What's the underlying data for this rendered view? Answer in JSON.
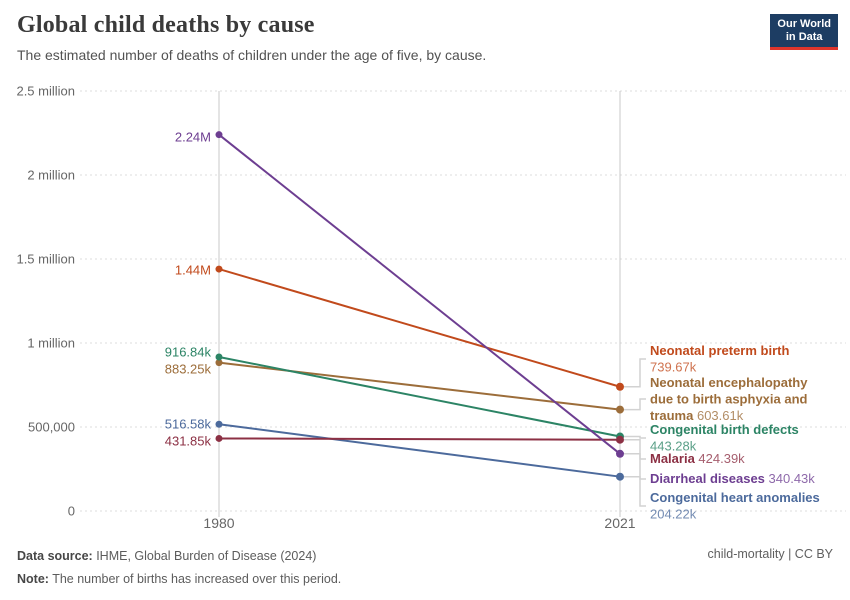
{
  "header": {
    "title": "Global child deaths by cause",
    "subtitle": "The estimated number of deaths of children under the age of five, by cause."
  },
  "logo": {
    "line1": "Our World",
    "line2": "in Data",
    "bg_color": "#1d3d63",
    "bar_color": "#de352c"
  },
  "footer": {
    "source_label": "Data source:",
    "source_text": " IHME, Global Burden of Disease (2024)",
    "note_label": "Note:",
    "note_text": " The number of births has increased over this period.",
    "right": "child-mortality | CC BY"
  },
  "chart_data": {
    "type": "line",
    "title": "Global child deaths by cause",
    "xlabel": "",
    "ylabel": "",
    "x": [
      1980,
      2021
    ],
    "x_tick_labels": [
      "1980",
      "2021"
    ],
    "ylim": [
      0,
      2500000
    ],
    "y_ticks": [
      0,
      500000,
      1000000,
      1500000,
      2000000,
      2500000
    ],
    "y_tick_labels": [
      "0",
      "500,000",
      "1 million",
      "1.5 million",
      "2 million",
      "2.5 million"
    ],
    "grid": "dashed-horizontal",
    "legend_position": "right-inline-labels",
    "series": [
      {
        "name": "Neonatal preterm birth",
        "color": "#c14a1c",
        "values": [
          1440000,
          739670
        ],
        "start_label": "1.44M",
        "end_label": "739.67k",
        "right_label_lines": [
          [
            {
              "t": "Neonatal preterm birth",
              "b": true
            }
          ],
          [
            {
              "t": "739.67k",
              "b": false
            }
          ]
        ]
      },
      {
        "name": "Neonatal encephalopathy due to birth asphyxia and trauma",
        "color": "#9c6d3a",
        "values": [
          883250,
          603610
        ],
        "start_label": "883.25k",
        "end_label": "603.61k",
        "right_label_lines": [
          [
            {
              "t": "Neonatal encephalopathy",
              "b": true
            }
          ],
          [
            {
              "t": "due to birth asphyxia and",
              "b": true
            }
          ],
          [
            {
              "t": "trauma",
              "b": true
            },
            {
              "t": " 603.61k",
              "b": false
            }
          ]
        ]
      },
      {
        "name": "Congenital birth defects",
        "color": "#2c8465",
        "values": [
          916840,
          443280
        ],
        "start_label": "916.84k",
        "end_label": "443.28k",
        "right_label_lines": [
          [
            {
              "t": "Congenital birth defects",
              "b": true
            }
          ],
          [
            {
              "t": "443.28k",
              "b": false
            }
          ]
        ]
      },
      {
        "name": "Malaria",
        "color": "#8c3044",
        "values": [
          431850,
          424390
        ],
        "start_label": "431.85k",
        "end_label": "424.39k",
        "right_label_lines": [
          [
            {
              "t": "Malaria",
              "b": true
            },
            {
              "t": " 424.39k",
              "b": false
            }
          ]
        ]
      },
      {
        "name": "Diarrheal diseases",
        "color": "#6d3e91",
        "values": [
          2240000,
          340430
        ],
        "start_label": "2.24M",
        "end_label": "340.43k",
        "right_label_lines": [
          [
            {
              "t": "Diarrheal diseases",
              "b": true
            },
            {
              "t": " 340.43k",
              "b": false
            }
          ]
        ]
      },
      {
        "name": "Congenital heart anomalies",
        "color": "#4c6a9c",
        "values": [
          516580,
          204220
        ],
        "start_label": "516.58k",
        "end_label": "204.22k",
        "right_label_lines": [
          [
            {
              "t": "Congenital heart anomalies",
              "b": true
            }
          ],
          [
            {
              "t": "204.22k",
              "b": false
            }
          ]
        ]
      }
    ]
  }
}
